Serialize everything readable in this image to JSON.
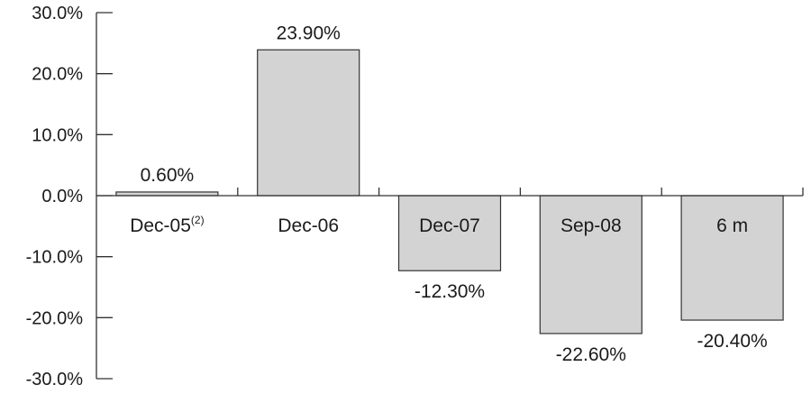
{
  "chart_data": {
    "type": "bar",
    "categories": [
      {
        "main": "Dec-05",
        "sup": "(2)"
      },
      {
        "main": "Dec-06",
        "sup": ""
      },
      {
        "main": "Dec-07",
        "sup": ""
      },
      {
        "main": "Sep-08",
        "sup": ""
      },
      {
        "main": "6 m",
        "sup": ""
      }
    ],
    "values": [
      0.6,
      23.9,
      -12.3,
      -22.6,
      -20.4
    ],
    "data_labels": [
      "0.60%",
      "23.90%",
      "-12.30%",
      "-22.60%",
      "-20.40%"
    ],
    "ylim": [
      -30,
      30
    ],
    "yticks": [
      30,
      20,
      10,
      0,
      -10,
      -20,
      -30
    ],
    "ytick_labels": [
      "30.0%",
      "20.0%",
      "10.0%",
      "0.0%",
      "-10.0%",
      "-20.0%",
      "-30.0%"
    ],
    "title": "",
    "xlabel": "",
    "ylabel": "",
    "grid": false,
    "colors": {
      "bar_fill": "#d3d3d3",
      "bar_stroke": "#333333",
      "axis": "#333333",
      "text": "#1a1a1a"
    }
  }
}
